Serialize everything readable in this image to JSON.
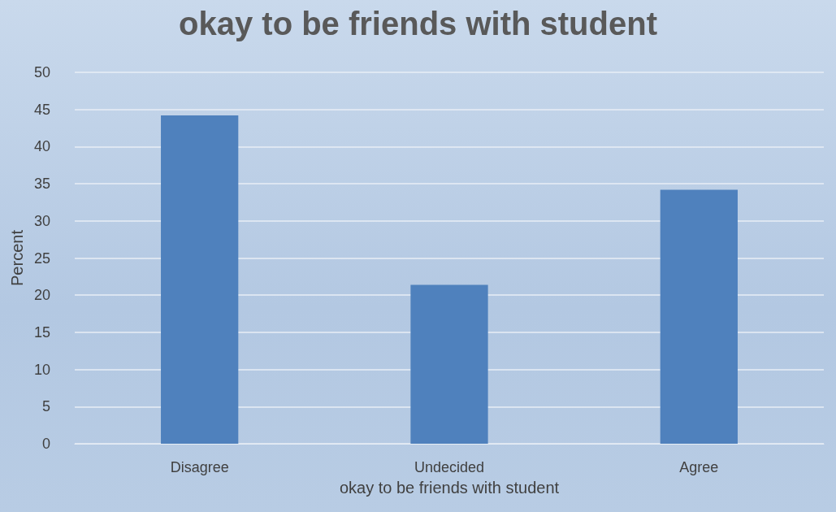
{
  "chart_data": {
    "type": "bar",
    "title": "okay to be friends with student",
    "xlabel": "okay to be friends with student",
    "ylabel": "Percent",
    "categories": [
      "Disagree",
      "Undecided",
      "Agree"
    ],
    "values": [
      44.2,
      21.4,
      34.2
    ],
    "color": "#4f81bd",
    "ylim": [
      0,
      50
    ],
    "yticks": [
      0,
      5,
      10,
      15,
      20,
      25,
      30,
      35,
      40,
      45,
      50
    ],
    "grid": "y"
  }
}
